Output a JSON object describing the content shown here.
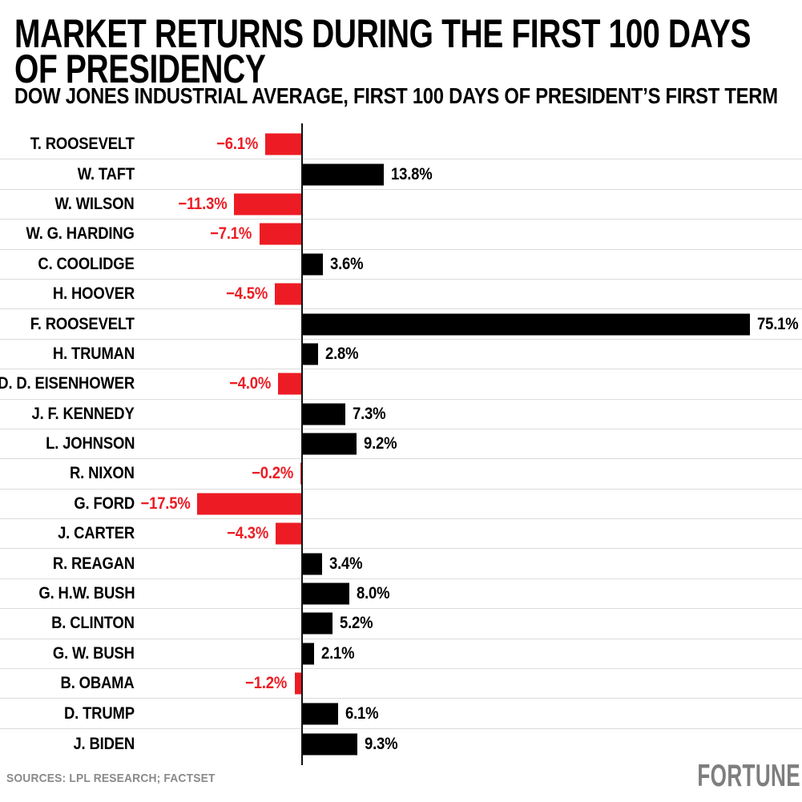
{
  "header": {
    "title_line1": "MARKET RETURNS DURING THE FIRST 100 DAYS",
    "title_line2": "OF PRESIDENCY",
    "subtitle": "DOW JONES INDUSTRIAL AVERAGE, FIRST 100 DAYS OF PRESIDENT’S FIRST TERM"
  },
  "chart_data": {
    "type": "bar",
    "orientation": "horizontal",
    "title": "MARKET RETURNS DURING THE FIRST 100 DAYS OF PRESIDENCY",
    "subtitle": "DOW JONES INDUSTRIAL AVERAGE, FIRST 100 DAYS OF PRESIDENT’S FIRST TERM",
    "xlabel": "",
    "ylabel": "",
    "xlim": [
      -20,
      80
    ],
    "grid": false,
    "legend": "none",
    "value_label_position": "outside-end",
    "positive_color": "#000000",
    "negative_color": "#ED1C24",
    "row_separator_color": "#DBDBDB",
    "categories": [
      "T. ROOSEVELT",
      "W. TAFT",
      "W. WILSON",
      "W. G. HARDING",
      "C. COOLIDGE",
      "H. HOOVER",
      "F. ROOSEVELT",
      "H. TRUMAN",
      "D. D. EISENHOWER",
      "J. F. KENNEDY",
      "L. JOHNSON",
      "R. NIXON",
      "G. FORD",
      "J. CARTER",
      "R. REAGAN",
      "G. H.W. BUSH",
      "B. CLINTON",
      "G. W. BUSH",
      "B. OBAMA",
      "D. TRUMP",
      "J. BIDEN"
    ],
    "values": [
      -6.1,
      13.8,
      -11.3,
      -7.1,
      3.6,
      -4.5,
      75.1,
      2.8,
      -4.0,
      7.3,
      9.2,
      -0.2,
      -17.5,
      -4.3,
      3.4,
      8.0,
      5.2,
      2.1,
      -1.2,
      6.1,
      9.3
    ],
    "labels": [
      "−6.1%",
      "13.8%",
      "−11.3%",
      "−7.1%",
      "3.6%",
      "−4.5%",
      "75.1%",
      "2.8%",
      "−4.0%",
      "7.3%",
      "9.2%",
      "−0.2%",
      "−17.5%",
      "−4.3%",
      "3.4%",
      "8.0%",
      "5.2%",
      "2.1%",
      "−1.2%",
      "6.1%",
      "9.3%"
    ]
  },
  "footer": {
    "sources": "SOURCES: LPL RESEARCH; FACTSET",
    "brand": "FORTUNE"
  },
  "colors": {
    "positive_bar": "#000000",
    "negative_bar": "#ED1C24",
    "separator": "#DBDBDB",
    "axis": "#111111",
    "footer_text": "#8A8A8C",
    "brand_gray": "#7E7E7E",
    "background": "#FFFFFF"
  }
}
